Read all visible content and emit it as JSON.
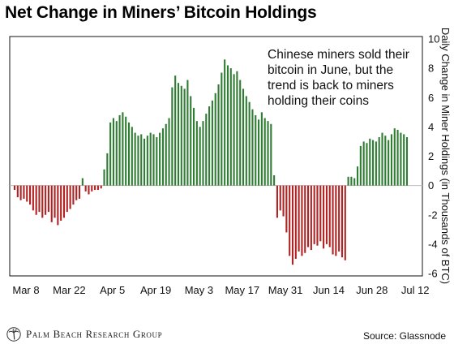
{
  "chart_data": {
    "type": "bar",
    "title": "Net Change in Miners’ Bitcoin Holdings",
    "ylabel": "Daily Change in Miner Holdings (in Thousands of BTC)",
    "xlabel": "",
    "ylim": [
      -6,
      10
    ],
    "y_ticks": [
      "10",
      "8",
      "6",
      "4",
      "2",
      "0",
      "-2",
      "-4",
      "-6"
    ],
    "y_axis_position": "right",
    "grid": false,
    "x_tick_labels": [
      "Mar 8",
      "Mar 22",
      "Apr 5",
      "Apr 19",
      "May 3",
      "May 17",
      "May 31",
      "Jun 14",
      "Jun 28",
      "Jul 12"
    ],
    "x_tick_indices": [
      0,
      14,
      28,
      42,
      56,
      70,
      84,
      98,
      112,
      126
    ],
    "positive_color": "#2e7d32",
    "negative_color": "#b22222",
    "annotation": "Chinese miners sold their bitcoin in June, but the trend is back to miners holding their coins",
    "values": [
      -0.3,
      -0.8,
      -1.0,
      -0.9,
      -1.1,
      -1.3,
      -1.7,
      -2.0,
      -1.8,
      -2.2,
      -2.0,
      -1.8,
      -2.5,
      -2.2,
      -2.7,
      -2.4,
      -2.2,
      -1.8,
      -1.6,
      -1.3,
      -1.0,
      -0.9,
      0.5,
      -0.4,
      -0.6,
      -0.4,
      -0.3,
      -0.3,
      -0.2,
      1.1,
      2.2,
      4.3,
      4.6,
      4.4,
      4.8,
      5.0,
      4.7,
      4.3,
      4.0,
      3.6,
      3.4,
      3.5,
      3.2,
      3.4,
      3.6,
      3.5,
      3.3,
      3.6,
      3.9,
      4.2,
      4.6,
      6.7,
      7.5,
      7.0,
      6.8,
      6.6,
      7.2,
      6.1,
      5.3,
      4.4,
      4.0,
      4.4,
      4.9,
      5.4,
      5.8,
      6.3,
      6.9,
      7.7,
      8.6,
      8.2,
      8.0,
      7.6,
      7.8,
      7.2,
      6.6,
      6.1,
      5.7,
      5.2,
      4.8,
      4.5,
      5.0,
      4.6,
      4.4,
      4.2,
      0.7,
      -2.2,
      -1.7,
      -2.1,
      -3.2,
      -4.8,
      -5.4,
      -5.0,
      -4.5,
      -4.8,
      -4.6,
      -4.2,
      -4.4,
      -4.0,
      -4.1,
      -3.8,
      -4.3,
      -4.0,
      -4.2,
      -4.7,
      -4.8,
      -4.5,
      -4.9,
      -5.1,
      0.6,
      0.6,
      0.5,
      1.3,
      2.7,
      3.0,
      2.9,
      3.2,
      3.1,
      3.0,
      3.3,
      3.6,
      3.4,
      3.1,
      3.5,
      3.9,
      3.8,
      3.6,
      3.5,
      3.3
    ]
  },
  "footer": {
    "logo_text": "Palm Beach Research Group",
    "source": "Source: Glassnode"
  }
}
